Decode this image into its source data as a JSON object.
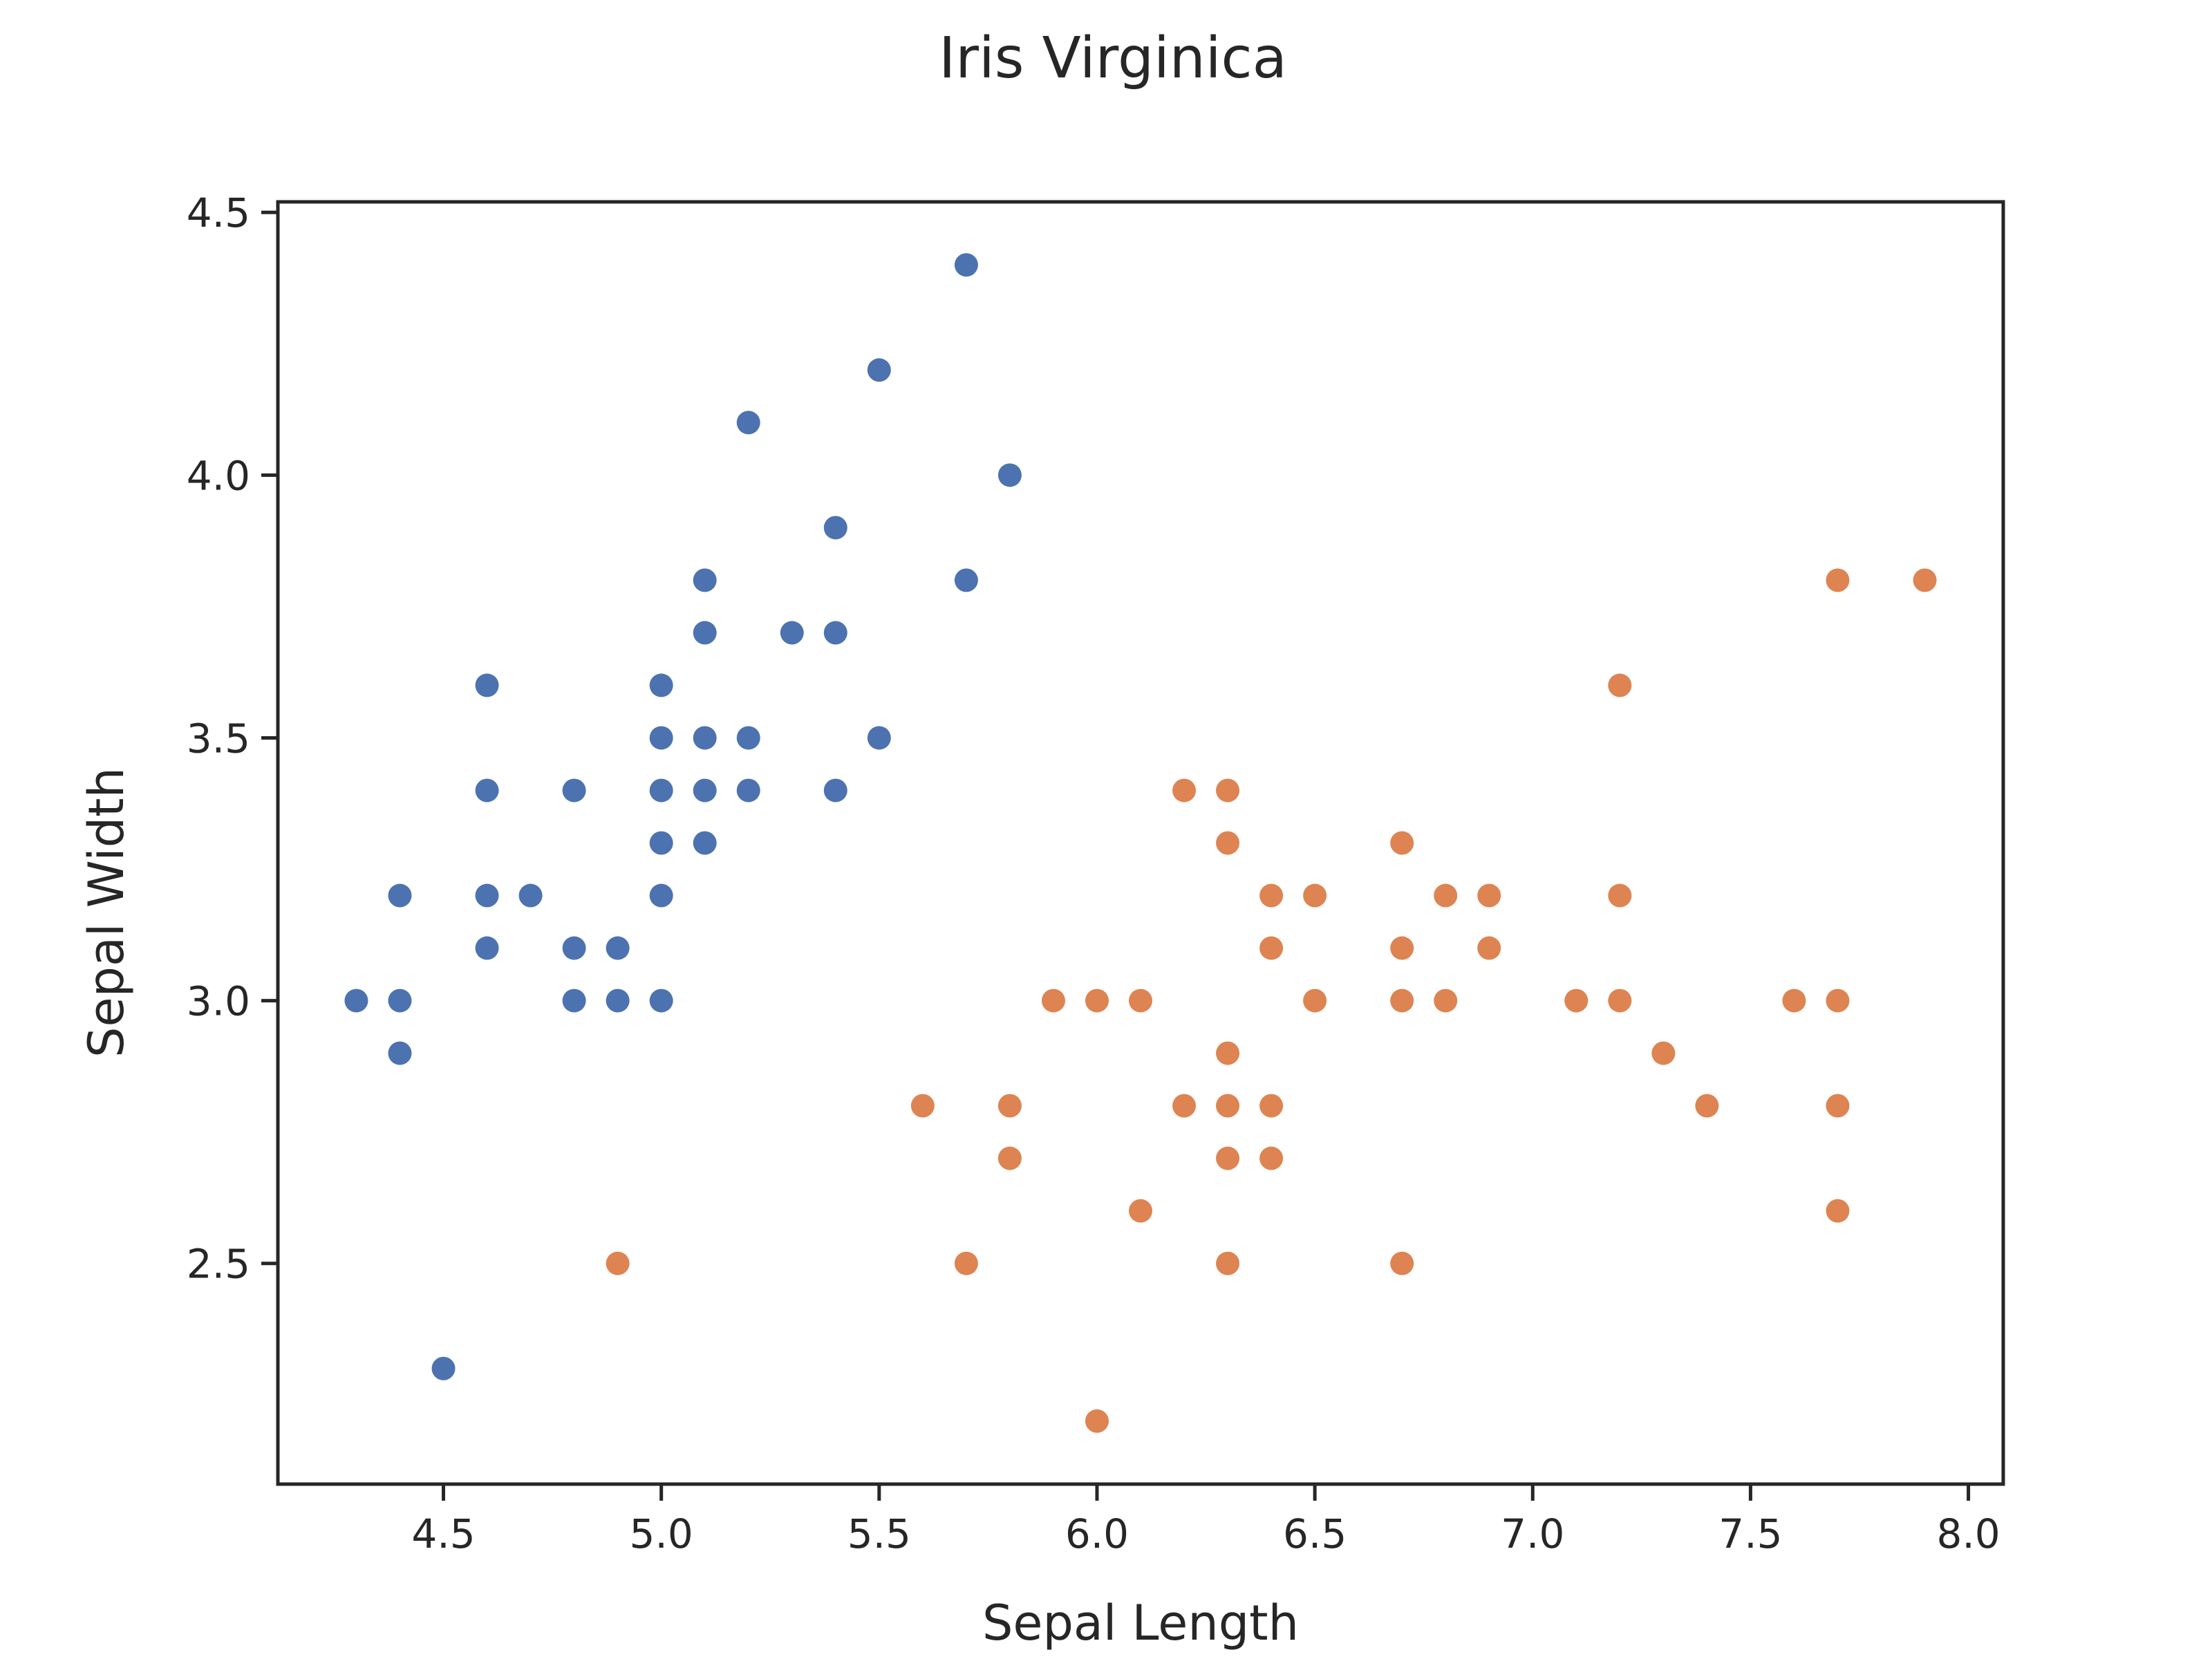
{
  "chart_data": {
    "type": "scatter",
    "title": "Iris Virginica",
    "xlabel": "Sepal Length",
    "ylabel": "Sepal Width",
    "xlim": [
      4.12,
      8.08
    ],
    "ylim": [
      2.08,
      4.52
    ],
    "xticks": [
      "4.5",
      "5.0",
      "5.5",
      "6.0",
      "6.5",
      "7.0",
      "7.5",
      "8.0"
    ],
    "yticks": [
      "2.5",
      "3.0",
      "3.5",
      "4.0",
      "4.5"
    ],
    "grid": false,
    "series": [
      {
        "color": "#4c72b0",
        "points": [
          [
            4.3,
            3.0
          ],
          [
            4.4,
            3.2
          ],
          [
            4.4,
            3.0
          ],
          [
            4.4,
            2.9
          ],
          [
            4.5,
            2.3
          ],
          [
            4.6,
            3.6
          ],
          [
            4.6,
            3.4
          ],
          [
            4.6,
            3.2
          ],
          [
            4.6,
            3.1
          ],
          [
            4.7,
            3.2
          ],
          [
            4.8,
            3.4
          ],
          [
            4.8,
            3.1
          ],
          [
            4.8,
            3.0
          ],
          [
            4.9,
            3.1
          ],
          [
            4.9,
            3.0
          ],
          [
            5.0,
            3.6
          ],
          [
            5.0,
            3.5
          ],
          [
            5.0,
            3.4
          ],
          [
            5.0,
            3.3
          ],
          [
            5.0,
            3.2
          ],
          [
            5.0,
            3.0
          ],
          [
            5.1,
            3.8
          ],
          [
            5.1,
            3.7
          ],
          [
            5.1,
            3.5
          ],
          [
            5.1,
            3.4
          ],
          [
            5.1,
            3.3
          ],
          [
            5.2,
            4.1
          ],
          [
            5.2,
            3.5
          ],
          [
            5.2,
            3.4
          ],
          [
            5.3,
            3.7
          ],
          [
            5.4,
            3.9
          ],
          [
            5.4,
            3.7
          ],
          [
            5.4,
            3.4
          ],
          [
            5.5,
            4.2
          ],
          [
            5.5,
            3.5
          ],
          [
            5.7,
            4.4
          ],
          [
            5.7,
            3.8
          ],
          [
            5.8,
            4.0
          ]
        ]
      },
      {
        "color": "#dd8452",
        "points": [
          [
            4.9,
            2.5
          ],
          [
            5.6,
            2.8
          ],
          [
            5.7,
            2.5
          ],
          [
            5.8,
            2.8
          ],
          [
            5.8,
            2.7
          ],
          [
            5.9,
            3.0
          ],
          [
            6.0,
            3.0
          ],
          [
            6.0,
            2.2
          ],
          [
            6.1,
            3.0
          ],
          [
            6.1,
            2.6
          ],
          [
            6.2,
            3.4
          ],
          [
            6.2,
            2.8
          ],
          [
            6.3,
            3.4
          ],
          [
            6.3,
            3.3
          ],
          [
            6.3,
            2.9
          ],
          [
            6.3,
            2.8
          ],
          [
            6.3,
            2.7
          ],
          [
            6.3,
            2.5
          ],
          [
            6.4,
            3.2
          ],
          [
            6.4,
            3.1
          ],
          [
            6.4,
            2.8
          ],
          [
            6.4,
            2.7
          ],
          [
            6.5,
            3.2
          ],
          [
            6.5,
            3.0
          ],
          [
            6.7,
            3.3
          ],
          [
            6.7,
            3.1
          ],
          [
            6.7,
            3.0
          ],
          [
            6.7,
            2.5
          ],
          [
            6.8,
            3.2
          ],
          [
            6.8,
            3.0
          ],
          [
            6.9,
            3.2
          ],
          [
            6.9,
            3.1
          ],
          [
            7.1,
            3.0
          ],
          [
            7.2,
            3.6
          ],
          [
            7.2,
            3.2
          ],
          [
            7.2,
            3.0
          ],
          [
            7.3,
            2.9
          ],
          [
            7.4,
            2.8
          ],
          [
            7.6,
            3.0
          ],
          [
            7.7,
            3.8
          ],
          [
            7.7,
            3.0
          ],
          [
            7.7,
            2.8
          ],
          [
            7.7,
            2.6
          ],
          [
            7.9,
            3.8
          ]
        ]
      }
    ]
  }
}
